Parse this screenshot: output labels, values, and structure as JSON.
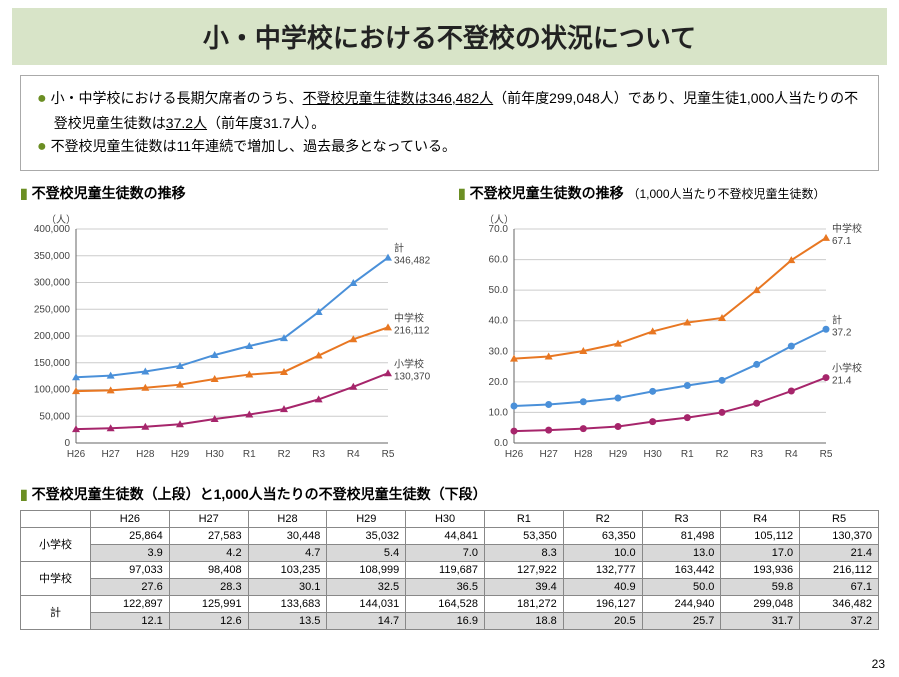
{
  "title": "小・中学校における不登校の状況について",
  "summary": {
    "line1_pre": "小・中学校における長期欠席者のうち、",
    "line1_u1": "不登校児童生徒数は346,482人",
    "line1_mid": "（前年度299,048人）であり、児童生徒1,000人当たりの不登校児童生徒数は",
    "line1_u2": "37.2人",
    "line1_post": "（前年度31.7人）。",
    "line2": "不登校児童生徒数は11年連続で増加し、過去最多となっている。"
  },
  "chart1": {
    "title": "不登校児童生徒数の推移",
    "ylabel": "（人）",
    "ylim": [
      0,
      400000
    ],
    "ytick_step": 50000,
    "categories": [
      "H26",
      "H27",
      "H28",
      "H29",
      "H30",
      "R1",
      "R2",
      "R3",
      "R4",
      "R5"
    ],
    "series": [
      {
        "name": "小学校",
        "color": "#a6256b",
        "values": [
          25864,
          27583,
          30448,
          35032,
          44841,
          53350,
          63350,
          81498,
          105112,
          130370
        ],
        "end_label": "小学校",
        "end_value": "130,370"
      },
      {
        "name": "中学校",
        "color": "#e87722",
        "values": [
          97033,
          98408,
          103235,
          108999,
          119687,
          127922,
          132777,
          163442,
          193936,
          216112
        ],
        "end_label": "中学校",
        "end_value": "216,112"
      },
      {
        "name": "計",
        "color": "#4a90d9",
        "values": [
          122897,
          125991,
          133683,
          144031,
          164528,
          181272,
          196127,
          244940,
          299048,
          346482
        ],
        "end_label": "計",
        "end_value": "346,482"
      }
    ],
    "marker": "triangle",
    "grid_color": "#cccccc",
    "background": "#ffffff"
  },
  "chart2": {
    "title": "不登校児童生徒数の推移",
    "subtitle": "（1,000人当たり不登校児童生徒数）",
    "ylabel": "（人）",
    "ylim": [
      0,
      70
    ],
    "ytick_step": 10,
    "categories": [
      "H26",
      "H27",
      "H28",
      "H29",
      "H30",
      "R1",
      "R2",
      "R3",
      "R4",
      "R5"
    ],
    "series": [
      {
        "name": "小学校",
        "color": "#a6256b",
        "values": [
          3.9,
          4.2,
          4.7,
          5.4,
          7.0,
          8.3,
          10.0,
          13.0,
          17.0,
          21.4
        ],
        "end_label": "小学校",
        "end_value": "21.4"
      },
      {
        "name": "中学校",
        "color": "#e87722",
        "values": [
          27.6,
          28.3,
          30.1,
          32.5,
          36.5,
          39.4,
          40.9,
          50.0,
          59.8,
          67.1
        ],
        "end_label": "中学校",
        "end_value": "67.1"
      },
      {
        "name": "計",
        "color": "#4a90d9",
        "values": [
          12.1,
          12.6,
          13.5,
          14.7,
          16.9,
          18.8,
          20.5,
          25.7,
          31.7,
          37.2
        ],
        "end_label": "計",
        "end_value": "37.2"
      }
    ],
    "marker_map": {
      "小学校": "circle",
      "中学校": "triangle",
      "計": "circle"
    },
    "grid_color": "#cccccc",
    "background": "#ffffff"
  },
  "table": {
    "title": "不登校児童生徒数（上段）と1,000人当たりの不登校児童生徒数（下段）",
    "columns": [
      "H26",
      "H27",
      "H28",
      "H29",
      "H30",
      "R1",
      "R2",
      "R3",
      "R4",
      "R5"
    ],
    "groups": [
      {
        "label": "小学校",
        "top": [
          "25,864",
          "27,583",
          "30,448",
          "35,032",
          "44,841",
          "53,350",
          "63,350",
          "81,498",
          "105,112",
          "130,370"
        ],
        "bot": [
          "3.9",
          "4.2",
          "4.7",
          "5.4",
          "7.0",
          "8.3",
          "10.0",
          "13.0",
          "17.0",
          "21.4"
        ]
      },
      {
        "label": "中学校",
        "top": [
          "97,033",
          "98,408",
          "103,235",
          "108,999",
          "119,687",
          "127,922",
          "132,777",
          "163,442",
          "193,936",
          "216,112"
        ],
        "bot": [
          "27.6",
          "28.3",
          "30.1",
          "32.5",
          "36.5",
          "39.4",
          "40.9",
          "50.0",
          "59.8",
          "67.1"
        ]
      },
      {
        "label": "計",
        "top": [
          "122,897",
          "125,991",
          "133,683",
          "144,031",
          "164,528",
          "181,272",
          "196,127",
          "244,940",
          "299,048",
          "346,482"
        ],
        "bot": [
          "12.1",
          "12.6",
          "13.5",
          "14.7",
          "16.9",
          "18.8",
          "20.5",
          "25.7",
          "31.7",
          "37.2"
        ]
      }
    ]
  },
  "page": "23"
}
